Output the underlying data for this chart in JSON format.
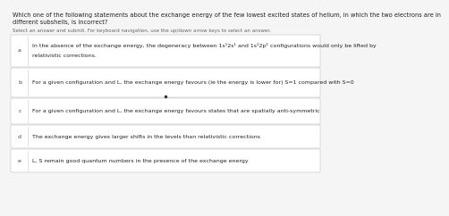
{
  "title_line1": "Which one of the following statements about the exchange energy of the few lowest excited states of helium, in which the two electrons are in",
  "title_line2": "different subshells, is incorrect?",
  "subtitle": "Select an answer and submit. For keyboard navigation, use the up/down arrow keys to select an answer.",
  "options": [
    {
      "label": "a",
      "text_line1": "In the absence of the exchange energy, the degeneracy between 1s¹2s¹ and 1s¹2p¹ configurations would only be lifted by",
      "text_line2": "relativistic corrections.",
      "has_dot": false,
      "two_lines": true
    },
    {
      "label": "b",
      "text_line1": "For a given configuration and L, the exchange energy favours (ie the energy is lower for) S=1 compared with S=0",
      "text_line2": "",
      "has_dot": false,
      "two_lines": false
    },
    {
      "label": "c",
      "text_line1": "For a given configuration and L, the exchange energy favours states that are spatially anti-symmetric",
      "text_line2": "",
      "has_dot": true,
      "two_lines": false
    },
    {
      "label": "d",
      "text_line1": "The exchange energy gives larger shifts in the levels than relativistic corrections",
      "text_line2": "",
      "has_dot": false,
      "two_lines": false
    },
    {
      "label": "e",
      "text_line1": "L, S remain good quantum numbers in the presence of the exchange energy",
      "text_line2": "",
      "has_dot": false,
      "two_lines": false
    }
  ],
  "bg_color": "#f5f5f5",
  "box_color": "#ffffff",
  "box_edge_color": "#cccccc",
  "text_color": "#222222",
  "label_color": "#444444",
  "dot_color": "#333333",
  "title_fontsize": 4.8,
  "subtitle_fontsize": 4.0,
  "option_fontsize": 4.5,
  "label_fontsize": 4.5
}
